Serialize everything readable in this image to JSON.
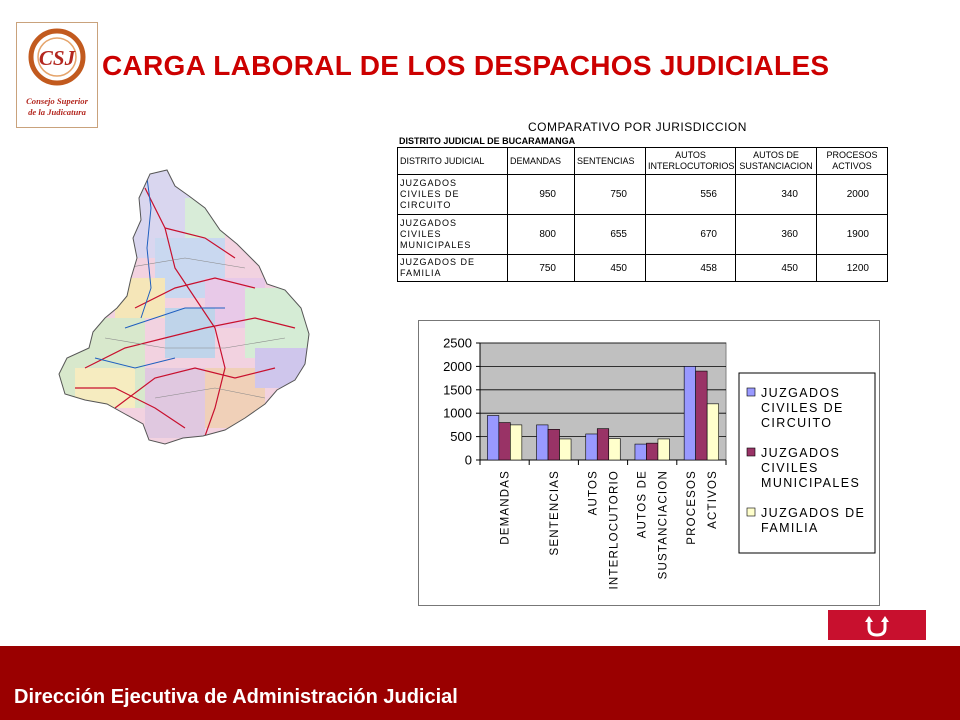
{
  "logo": {
    "initials": "CSJ",
    "line1": "Consejo Superior",
    "line2": "de la Judicatura"
  },
  "page_title": "CARGA LABORAL DE LOS DESPACHOS JUDICIALES",
  "table": {
    "caption": "COMPARATIVO POR JURISDICCION",
    "subcaption": "DISTRITO JUDICIAL DE BUCARAMANGA",
    "headers": [
      [
        "DISTRITO JUDICIAL"
      ],
      [
        "DEMANDAS"
      ],
      [
        "SENTENCIAS"
      ],
      [
        "AUTOS",
        "INTERLOCUTORIOS"
      ],
      [
        "AUTOS DE",
        "SUSTANCIACION"
      ],
      [
        "PROCESOS",
        "ACTIVOS"
      ]
    ],
    "rows": [
      {
        "label": [
          "JUZGADOS",
          "CIVILES DE",
          "CIRCUITO"
        ],
        "values": [
          "950",
          "750",
          "556",
          "340",
          "2000"
        ]
      },
      {
        "label": [
          "JUZGADOS",
          "CIVILES",
          "MUNICIPALES"
        ],
        "values": [
          "800",
          "655",
          "670",
          "360",
          "1900"
        ]
      },
      {
        "label": [
          "JUZGADOS DE",
          "FAMILIA"
        ],
        "values": [
          "750",
          "450",
          "458",
          "450",
          "1200"
        ]
      }
    ]
  },
  "chart_data": {
    "type": "bar",
    "title": "",
    "xlabel": "",
    "ylabel": "",
    "categories": [
      [
        "DEMANDAS"
      ],
      [
        "SENTENCIAS"
      ],
      [
        "AUTOS",
        "INTERLOCUTORIO"
      ],
      [
        "AUTOS DE",
        "SUSTANCIACION"
      ],
      [
        "PROCESOS",
        "ACTIVOS"
      ]
    ],
    "series": [
      {
        "name": [
          "JUZGADOS",
          "CIVILES DE",
          "CIRCUITO"
        ],
        "values": [
          950,
          750,
          556,
          340,
          2000
        ],
        "color": "#9999ff"
      },
      {
        "name": [
          "JUZGADOS",
          "CIVILES",
          "MUNICIPALES"
        ],
        "values": [
          800,
          655,
          670,
          360,
          1900
        ],
        "color": "#993366"
      },
      {
        "name": [
          "JUZGADOS DE",
          "FAMILIA"
        ],
        "values": [
          750,
          450,
          458,
          450,
          1200
        ],
        "color": "#ffffcc"
      }
    ],
    "ylim": [
      0,
      2500
    ],
    "yticks": [
      0,
      500,
      1000,
      1500,
      2000,
      2500
    ],
    "plot_background": "#c0c0c0",
    "grid": true,
    "legend_position": "right"
  },
  "footer": {
    "text": "Dirección Ejecutiva de Administración Judicial"
  },
  "colors": {
    "title": "#cc0000",
    "footer_bg": "#9a0000",
    "button_bg": "#c8102e"
  },
  "icons": {
    "back_button": "return-arrow-icon"
  }
}
